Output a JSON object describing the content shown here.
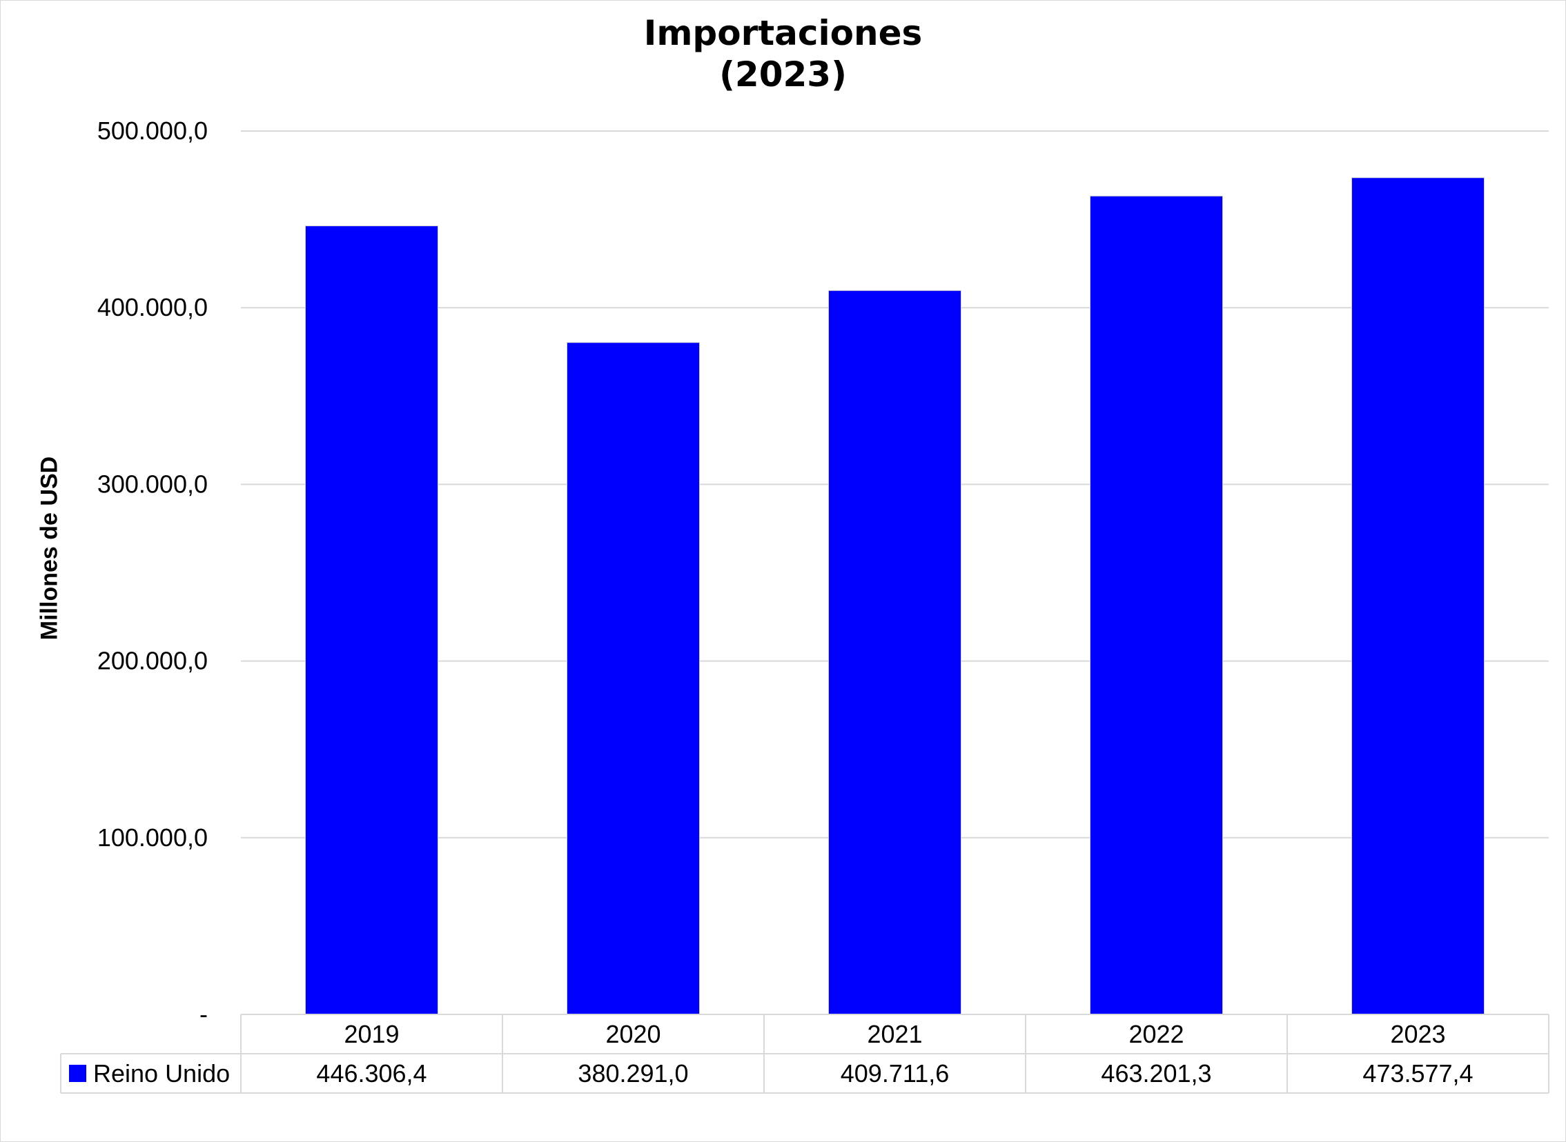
{
  "chart_data": {
    "type": "bar",
    "title_lines": [
      "Importaciones",
      "(2023)"
    ],
    "xlabel": "",
    "ylabel": "Millones de USD",
    "ylim": [
      0,
      500000
    ],
    "y_ticks": [
      {
        "value": 0,
        "label": "-"
      },
      {
        "value": 100000,
        "label": "100.000,0"
      },
      {
        "value": 200000,
        "label": "200.000,0"
      },
      {
        "value": 300000,
        "label": "300.000,0"
      },
      {
        "value": 400000,
        "label": "400.000,0"
      },
      {
        "value": 500000,
        "label": "500.000,0"
      }
    ],
    "grid": true,
    "legend": "data-table",
    "categories": [
      "2019",
      "2020",
      "2021",
      "2022",
      "2023"
    ],
    "series": [
      {
        "name": "Reino Unido",
        "color": "#0000ff",
        "values": [
          446306.4,
          380291.0,
          409711.6,
          463201.3,
          473577.4
        ],
        "value_labels": [
          "446.306,4",
          "380.291,0",
          "409.711,6",
          "463.201,3",
          "473.577,4"
        ]
      }
    ]
  }
}
